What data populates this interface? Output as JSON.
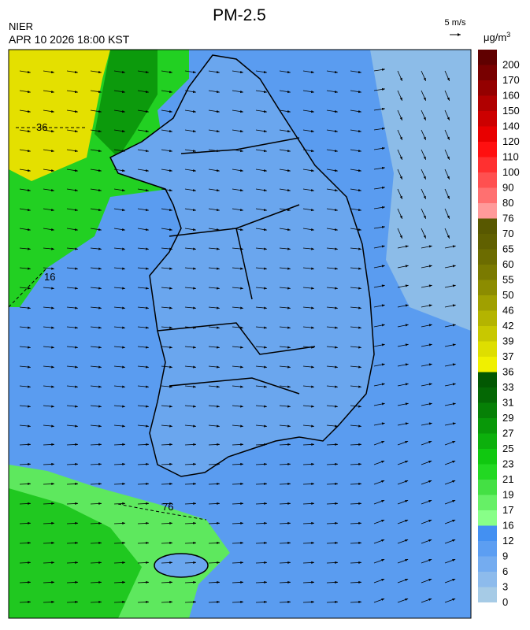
{
  "header": {
    "title": "PM-2.5",
    "agency": "NIER",
    "datetime": "APR 10 2026 18:00 KST",
    "wind_scale": "5 m/s"
  },
  "map": {
    "contour_labels": [
      "36",
      "16",
      "76"
    ]
  },
  "colorbar": {
    "unit": "μg/m",
    "unit_sup": "3",
    "levels": [
      0,
      3,
      6,
      9,
      12,
      16,
      17,
      19,
      21,
      23,
      25,
      27,
      29,
      31,
      33,
      36,
      37,
      39,
      42,
      46,
      50,
      55,
      60,
      65,
      70,
      76,
      80,
      90,
      100,
      110,
      120,
      140,
      150,
      160,
      170,
      200
    ],
    "colors": [
      "#a6cbe6",
      "#8dbbec",
      "#74acf0",
      "#5c9ef2",
      "#4390f2",
      "#88ff88",
      "#66f066",
      "#44e044",
      "#22d822",
      "#10c810",
      "#0cb00c",
      "#089808",
      "#068006",
      "#046804",
      "#025802",
      "#f0f000",
      "#dede00",
      "#c8c800",
      "#b4b400",
      "#a0a000",
      "#8c8c00",
      "#7a7a00",
      "#6c6c00",
      "#606000",
      "#585800",
      "#ff9a9a",
      "#ff7070",
      "#ff5050",
      "#ff3030",
      "#ff1010",
      "#e80000",
      "#cc0000",
      "#b00000",
      "#940000",
      "#780000",
      "#600000"
    ]
  }
}
